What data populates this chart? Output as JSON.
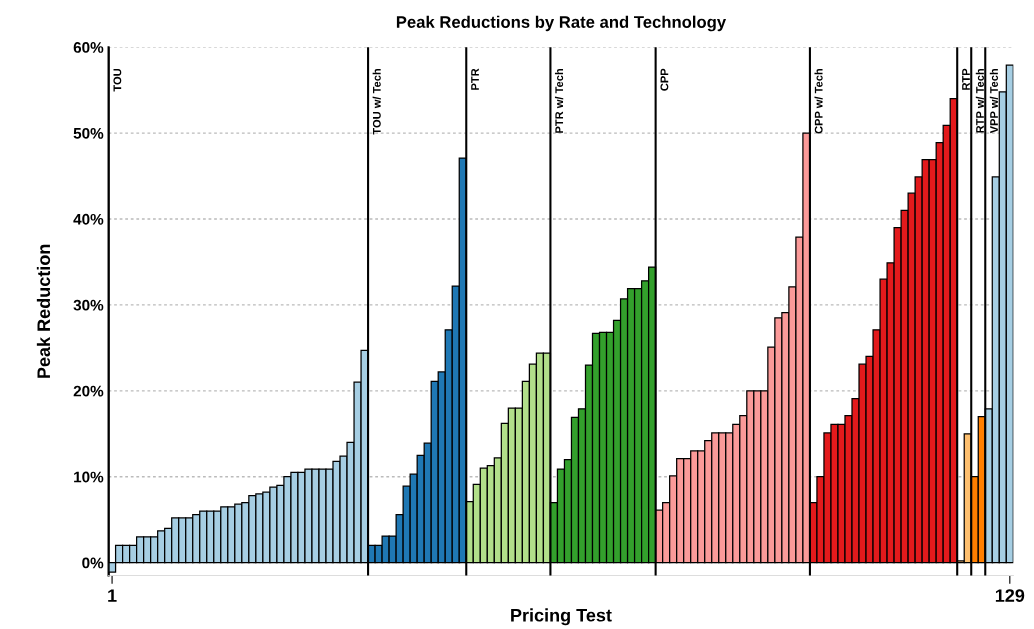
{
  "chart_data": {
    "type": "bar",
    "title": "Peak Reductions by Rate and Technology",
    "xlabel": "Pricing Test",
    "ylabel": "Peak Reduction",
    "xlim": [
      0.5,
      129.5
    ],
    "xticks": [
      1,
      129
    ],
    "ylim": [
      -1.5,
      60
    ],
    "yticks": [
      {
        "value": 0,
        "label": "0%"
      },
      {
        "value": 10,
        "label": "10%"
      },
      {
        "value": 20,
        "label": "20%"
      },
      {
        "value": 30,
        "label": "30%"
      },
      {
        "value": 40,
        "label": "40%"
      },
      {
        "value": 50,
        "label": "50%"
      },
      {
        "value": 60,
        "label": "60%"
      }
    ],
    "grid": "y",
    "series": [
      {
        "color": "#a6cee3",
        "x": [
          1,
          2,
          3,
          4,
          5,
          6,
          7,
          8,
          9,
          10,
          11,
          12,
          13,
          14,
          15,
          16,
          17,
          18,
          19,
          20,
          21,
          22,
          23,
          24,
          25,
          26,
          27,
          28,
          29,
          30,
          31,
          32,
          33,
          34,
          35,
          36,
          37
        ],
        "values": [
          -1.1,
          2,
          2,
          2,
          3,
          3,
          3,
          3.7,
          4,
          5.2,
          5.2,
          5.2,
          5.6,
          6,
          6,
          6,
          6.5,
          6.5,
          6.8,
          7,
          7.8,
          8,
          8.2,
          8.8,
          9,
          10,
          10.5,
          10.5,
          10.9,
          10.9,
          10.9,
          10.9,
          11.8,
          12.4,
          14,
          21,
          24.7
        ]
      },
      {
        "color": "#1f78b4",
        "x": [
          38,
          39,
          40,
          41,
          42,
          43,
          44,
          45,
          46,
          47,
          48,
          49,
          50,
          51
        ],
        "values": [
          2,
          2,
          3.1,
          3.1,
          5.6,
          8.9,
          10.3,
          12.5,
          13.9,
          21.1,
          22.2,
          27.1,
          32.2,
          47.1
        ]
      },
      {
        "color": "#b2df8a",
        "x": [
          52,
          53,
          54,
          55,
          56,
          57,
          58,
          59,
          60,
          61,
          62,
          63
        ],
        "values": [
          7.1,
          9.1,
          11,
          11.3,
          12.2,
          16.2,
          18,
          18,
          21.1,
          23.1,
          24.4,
          24.4
        ]
      },
      {
        "color": "#33a02c",
        "x": [
          64,
          65,
          66,
          67,
          68,
          69,
          70,
          71,
          72,
          73,
          74,
          75,
          76,
          77,
          78
        ],
        "values": [
          7,
          10.9,
          12,
          16.9,
          17.9,
          23,
          26.7,
          26.8,
          26.8,
          28.2,
          30.7,
          31.9,
          31.9,
          32.8,
          34.4
        ]
      },
      {
        "color": "#fb9a99",
        "x": [
          79,
          80,
          81,
          82,
          83,
          84,
          85,
          86,
          87,
          88,
          89,
          90,
          91,
          92,
          93,
          94,
          95,
          96,
          97,
          98,
          99,
          100
        ],
        "values": [
          6.1,
          7,
          10.1,
          12.1,
          12.1,
          13,
          13,
          14.2,
          15.1,
          15.1,
          15.1,
          16.1,
          17.1,
          20,
          20,
          20,
          25.1,
          28.5,
          29.1,
          32.1,
          37.9,
          50
        ]
      },
      {
        "color": "#e31a1c",
        "x": [
          101,
          102,
          103,
          104,
          105,
          106,
          107,
          108,
          109,
          110,
          111,
          112,
          113,
          114,
          115,
          116,
          117,
          118,
          119,
          120,
          121
        ],
        "values": [
          7,
          10,
          15.1,
          16.1,
          16.1,
          17.1,
          19.1,
          23.1,
          24,
          27.1,
          33,
          34.9,
          39,
          41,
          43,
          44.9,
          46.9,
          46.9,
          48.9,
          50.9,
          54
        ]
      },
      {
        "color": "#fdbf6f",
        "x": [
          122,
          123
        ],
        "values": [
          0.2,
          15
        ]
      },
      {
        "color": "#ff7f00",
        "x": [
          124,
          125
        ],
        "values": [
          10,
          17
        ]
      },
      {
        "color": "#a6cee3",
        "x": [
          126,
          127,
          128,
          129
        ],
        "values": [
          17.9,
          44.9,
          54.8,
          57.9
        ]
      }
    ],
    "ref_lines": [
      {
        "axis": "x",
        "value": 0.5,
        "label": "TOU"
      },
      {
        "axis": "x",
        "value": 37.5,
        "label": "TOU w/ Tech"
      },
      {
        "axis": "x",
        "value": 51.5,
        "label": "PTR"
      },
      {
        "axis": "x",
        "value": 63.5,
        "label": "PTR w/ Tech"
      },
      {
        "axis": "x",
        "value": 78.5,
        "label": "CPP"
      },
      {
        "axis": "x",
        "value": 100.5,
        "label": "CPP w/ Tech"
      },
      {
        "axis": "x",
        "value": 121.5,
        "label": "RTP"
      },
      {
        "axis": "x",
        "value": 123.5,
        "label": "RTP w/ Tech"
      },
      {
        "axis": "x",
        "value": 125.5,
        "label": "VPP w/ Tech"
      }
    ]
  }
}
